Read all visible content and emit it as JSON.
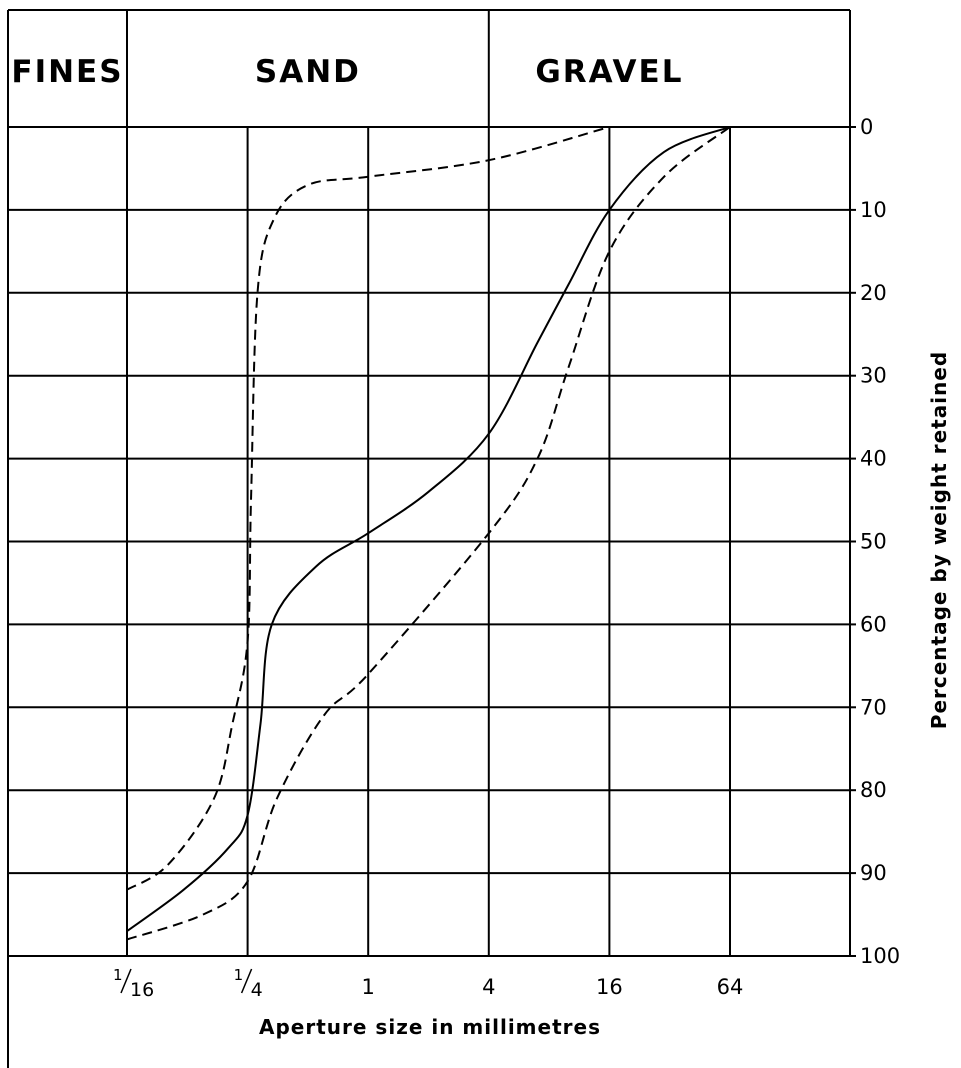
{
  "zones": [
    {
      "label": "FINES",
      "from": 0,
      "to": 0.0625
    },
    {
      "label": "SAND",
      "from": 0.0625,
      "to": 4
    },
    {
      "label": "GRAVEL",
      "from": 4,
      "to": 64
    }
  ],
  "chart_data": {
    "type": "line",
    "xlabel": "Aperture size in millimetres",
    "ylabel": "Percentage by weight retained",
    "x_scale": "log2",
    "x_ticks": [
      {
        "value": 0.0625,
        "label": "1/16",
        "num": "1",
        "den": "16"
      },
      {
        "value": 0.25,
        "label": "1/4",
        "num": "1",
        "den": "4"
      },
      {
        "value": 1,
        "label": "1"
      },
      {
        "value": 4,
        "label": "4"
      },
      {
        "value": 16,
        "label": "16"
      },
      {
        "value": 64,
        "label": "64"
      }
    ],
    "y_ticks": [
      "0",
      "10",
      "20",
      "30",
      "40",
      "50",
      "60",
      "70",
      "80",
      "90",
      "100"
    ],
    "ylim": [
      0,
      100
    ],
    "y_inverted": true,
    "grid": true,
    "series": [
      {
        "style": "dashed",
        "points": [
          [
            0.0625,
            92
          ],
          [
            0.1,
            89
          ],
          [
            0.17,
            81
          ],
          [
            0.21,
            72
          ],
          [
            0.25,
            62
          ],
          [
            0.26,
            45
          ],
          [
            0.28,
            20
          ],
          [
            0.34,
            11
          ],
          [
            0.5,
            7
          ],
          [
            1,
            6
          ],
          [
            4,
            4
          ],
          [
            16,
            0
          ]
        ]
      },
      {
        "style": "solid",
        "points": [
          [
            0.0625,
            97
          ],
          [
            0.12,
            92
          ],
          [
            0.2,
            87
          ],
          [
            0.25,
            83
          ],
          [
            0.29,
            72
          ],
          [
            0.33,
            60
          ],
          [
            0.55,
            53
          ],
          [
            1,
            49
          ],
          [
            2,
            44
          ],
          [
            4,
            37
          ],
          [
            7,
            26
          ],
          [
            10,
            19
          ],
          [
            16,
            10
          ],
          [
            30,
            3
          ],
          [
            64,
            0
          ]
        ]
      },
      {
        "style": "dashed",
        "points": [
          [
            0.0625,
            98
          ],
          [
            0.15,
            95
          ],
          [
            0.25,
            91
          ],
          [
            0.35,
            81
          ],
          [
            0.6,
            71
          ],
          [
            1,
            66
          ],
          [
            4,
            49
          ],
          [
            7,
            40
          ],
          [
            10,
            29
          ],
          [
            16,
            15
          ],
          [
            30,
            6
          ],
          [
            64,
            0
          ]
        ]
      }
    ]
  }
}
